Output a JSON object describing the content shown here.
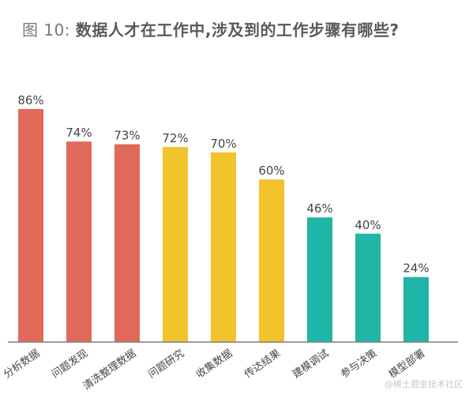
{
  "title_prefix": "图 10: ",
  "title_main": "数据人才在工作中,涉及到的工作步骤有哪些?",
  "watermark": "@稀土掘金技术社区",
  "colors": {
    "red": "#e0695a",
    "yellow": "#f2c32a",
    "teal": "#1fb5a7",
    "axis": "#7f7f7f",
    "label": "#444444"
  },
  "chart_data": {
    "type": "bar",
    "title": "图 10: 数据人才在工作中,涉及到的工作步骤有哪些?",
    "categories": [
      "分析数据",
      "问题发现",
      "清洗整理数据",
      "问题研究",
      "收集数据",
      "传达结果",
      "建模调试",
      "参与决策",
      "模型部署"
    ],
    "values": [
      86,
      74,
      73,
      72,
      70,
      60,
      46,
      40,
      24
    ],
    "value_labels": [
      "86%",
      "74%",
      "73%",
      "72%",
      "70%",
      "60%",
      "46%",
      "40%",
      "24%"
    ],
    "bar_colors": [
      "red",
      "red",
      "red",
      "yellow",
      "yellow",
      "yellow",
      "teal",
      "teal",
      "teal"
    ],
    "ylim": [
      0,
      100
    ],
    "grid": false,
    "y_axis_visible": false
  }
}
